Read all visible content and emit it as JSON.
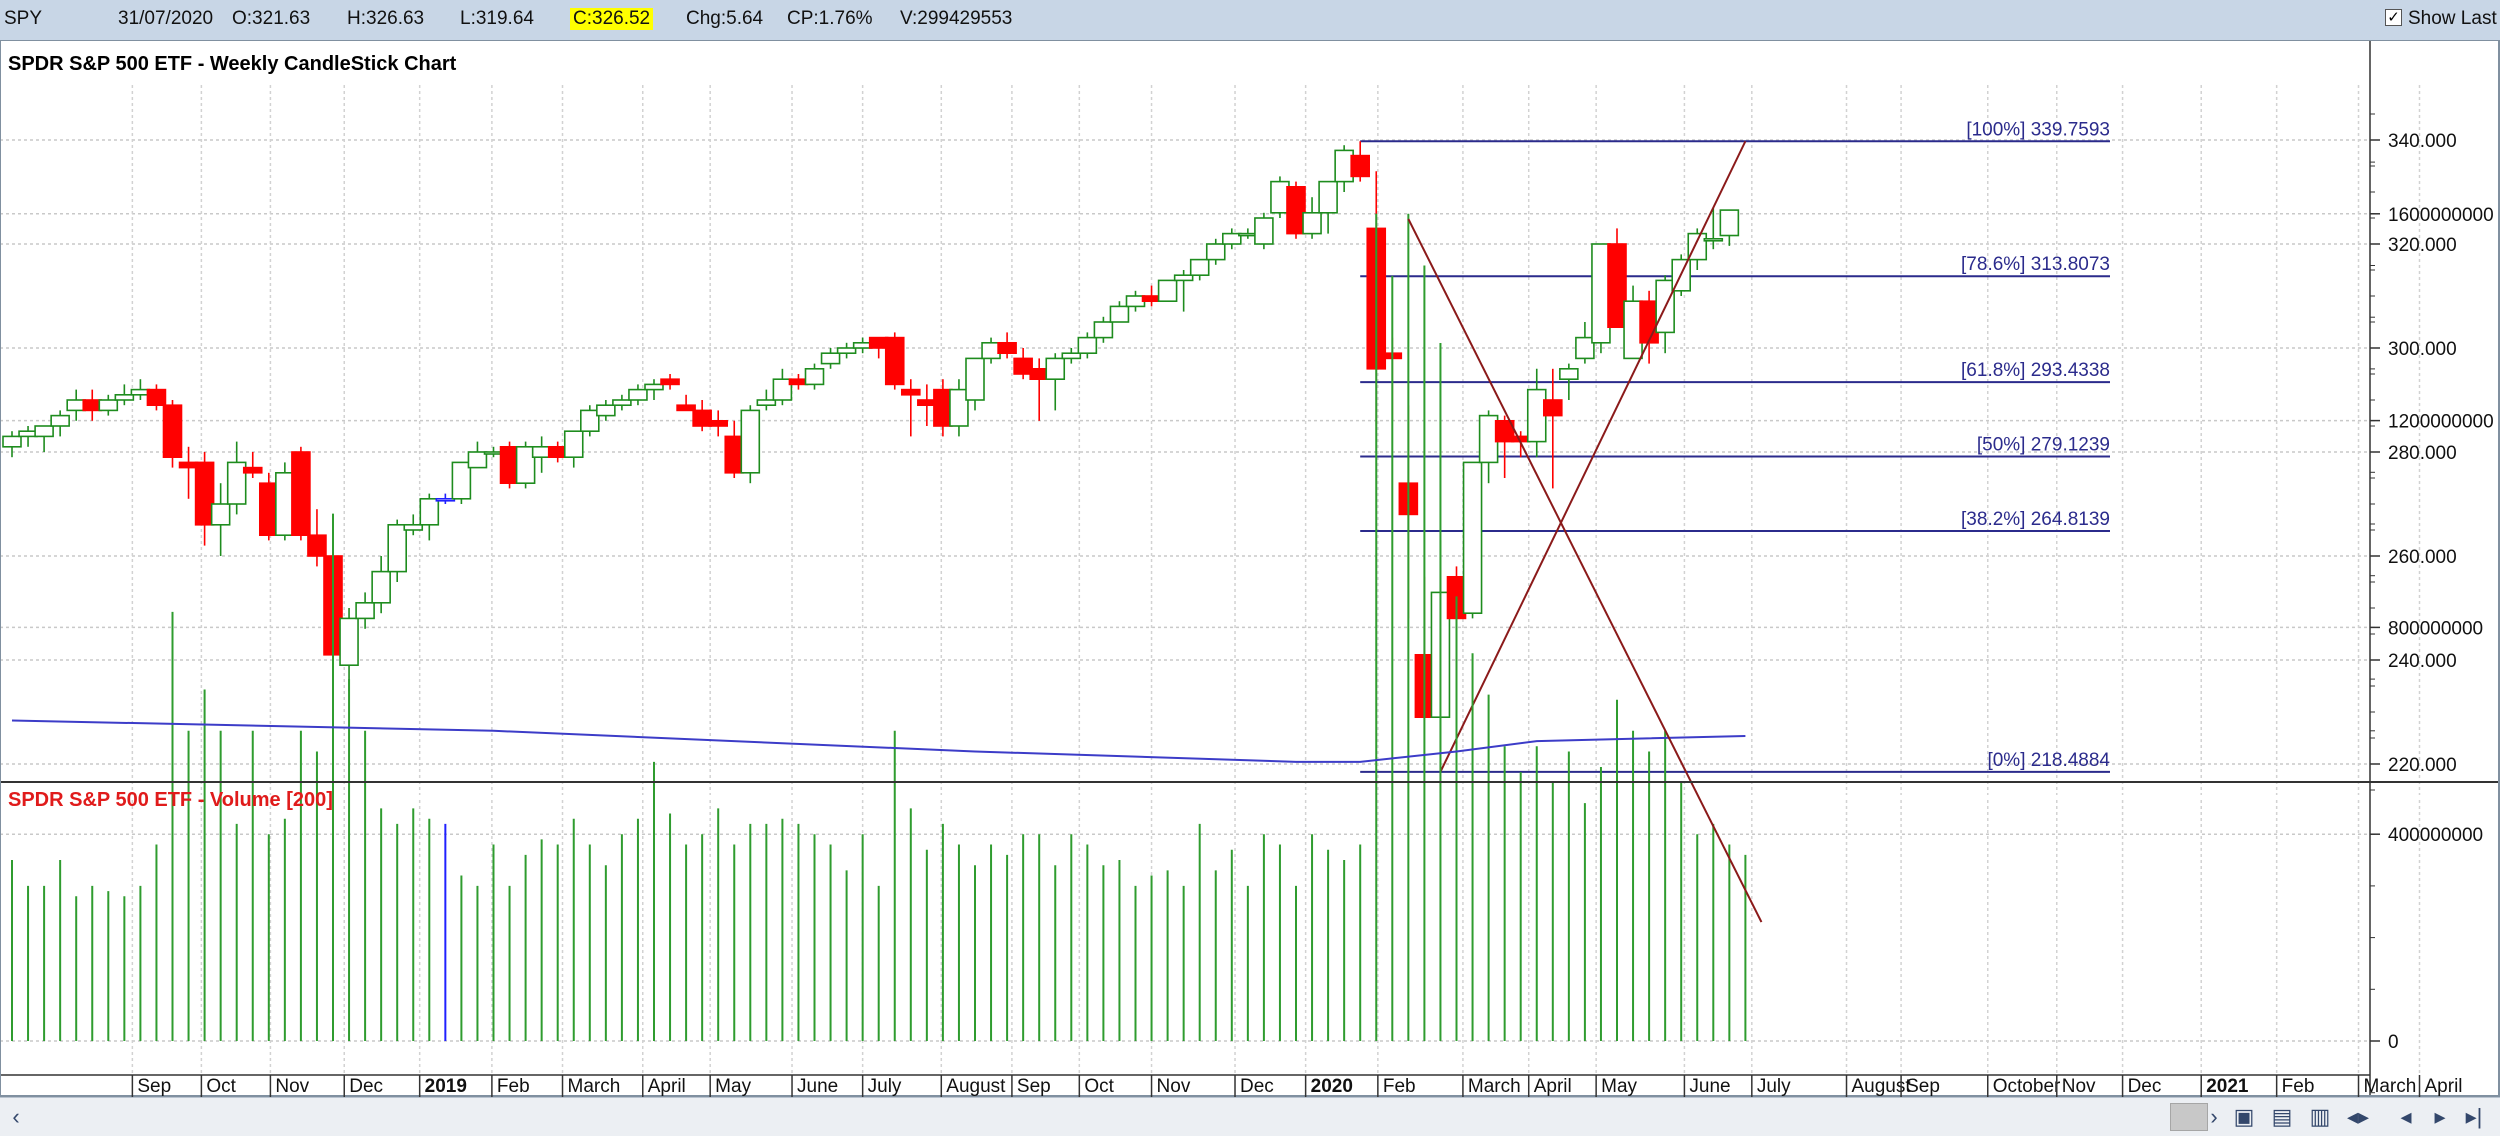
{
  "header": {
    "symbol": "SPY",
    "date": "31/07/2020",
    "open": "O:321.63",
    "high": "H:326.63",
    "low": "L:319.64",
    "close": "C:326.52",
    "change": "Chg:5.64",
    "change_pct": "CP:1.76%",
    "volume": "V:299429553",
    "show_last_label": "Show Last",
    "show_last_checked": "✓"
  },
  "colors": {
    "up": "#1e8c1e",
    "down": "#ff0000",
    "fib": "#2b2b8c",
    "trend": "#8b1a1a",
    "volume_bar": "#2f9c2f",
    "volume_ma": "#3c3cc8",
    "title_price": "#000000",
    "title_volume": "#e01b1b",
    "highlight": "#ffff00"
  },
  "chart_data": [
    {
      "type": "candlestick",
      "title": "SPDR S&P 500 ETF - Weekly CandleStick Chart",
      "ylim": [
        210,
        345
      ],
      "y_ticks": [
        "340.000",
        "320.000",
        "300.000",
        "280.000",
        "260.000",
        "240.000",
        "220.000"
      ],
      "y_tick_values": [
        340,
        320,
        300,
        280,
        260,
        240,
        220
      ],
      "grid": true,
      "candles": [
        {
          "o": 281,
          "h": 284,
          "l": 279,
          "c": 283
        },
        {
          "o": 283,
          "h": 285,
          "l": 281,
          "c": 284
        },
        {
          "o": 283,
          "h": 285,
          "l": 280,
          "c": 285
        },
        {
          "o": 285,
          "h": 288,
          "l": 283,
          "c": 287
        },
        {
          "o": 288,
          "h": 292,
          "l": 286,
          "c": 290
        },
        {
          "o": 290,
          "h": 292,
          "l": 286,
          "c": 288
        },
        {
          "o": 288,
          "h": 291,
          "l": 287,
          "c": 290
        },
        {
          "o": 290,
          "h": 293,
          "l": 289,
          "c": 291
        },
        {
          "o": 291,
          "h": 294,
          "l": 290,
          "c": 292
        },
        {
          "o": 292,
          "h": 293,
          "l": 288,
          "c": 289
        },
        {
          "o": 289,
          "h": 290,
          "l": 277,
          "c": 279
        },
        {
          "o": 278,
          "h": 281,
          "l": 271,
          "c": 277
        },
        {
          "o": 278,
          "h": 280,
          "l": 262,
          "c": 266
        },
        {
          "o": 266,
          "h": 274,
          "l": 260,
          "c": 270
        },
        {
          "o": 270,
          "h": 282,
          "l": 268,
          "c": 278
        },
        {
          "o": 277,
          "h": 280,
          "l": 275,
          "c": 276
        },
        {
          "o": 274,
          "h": 276,
          "l": 263,
          "c": 264
        },
        {
          "o": 264,
          "h": 278,
          "l": 263,
          "c": 276
        },
        {
          "o": 280,
          "h": 281,
          "l": 263,
          "c": 264
        },
        {
          "o": 264,
          "h": 269,
          "l": 258,
          "c": 260
        },
        {
          "o": 260,
          "h": 262,
          "l": 240,
          "c": 241
        },
        {
          "o": 239,
          "h": 250,
          "l": 234,
          "c": 248
        },
        {
          "o": 248,
          "h": 253,
          "l": 246,
          "c": 251
        },
        {
          "o": 251,
          "h": 260,
          "l": 249,
          "c": 257
        },
        {
          "o": 257,
          "h": 267,
          "l": 255,
          "c": 266
        },
        {
          "o": 265,
          "h": 268,
          "l": 264,
          "c": 266
        },
        {
          "o": 266,
          "h": 272,
          "l": 263,
          "c": 271
        },
        {
          "o": 271,
          "h": 272,
          "l": 270,
          "c": 271,
          "n": true
        },
        {
          "o": 271,
          "h": 278,
          "l": 270,
          "c": 278
        },
        {
          "o": 277,
          "h": 282,
          "l": 277,
          "c": 280
        },
        {
          "o": 280,
          "h": 281,
          "l": 279,
          "c": 280
        },
        {
          "o": 281,
          "h": 282,
          "l": 273,
          "c": 274
        },
        {
          "o": 274,
          "h": 282,
          "l": 273,
          "c": 281
        },
        {
          "o": 279,
          "h": 283,
          "l": 276,
          "c": 281
        },
        {
          "o": 281,
          "h": 282,
          "l": 278,
          "c": 279
        },
        {
          "o": 279,
          "h": 284,
          "l": 277,
          "c": 284
        },
        {
          "o": 284,
          "h": 289,
          "l": 283,
          "c": 288
        },
        {
          "o": 287,
          "h": 290,
          "l": 286,
          "c": 289
        },
        {
          "o": 289,
          "h": 291,
          "l": 288,
          "c": 290
        },
        {
          "o": 290,
          "h": 293,
          "l": 289,
          "c": 292
        },
        {
          "o": 292,
          "h": 294,
          "l": 290,
          "c": 293
        },
        {
          "o": 294,
          "h": 295,
          "l": 292,
          "c": 293
        },
        {
          "o": 289,
          "h": 291,
          "l": 288,
          "c": 288
        },
        {
          "o": 288,
          "h": 290,
          "l": 284,
          "c": 285
        },
        {
          "o": 286,
          "h": 288,
          "l": 283,
          "c": 285
        },
        {
          "o": 283,
          "h": 286,
          "l": 275,
          "c": 276
        },
        {
          "o": 276,
          "h": 289,
          "l": 274,
          "c": 288
        },
        {
          "o": 289,
          "h": 292,
          "l": 288,
          "c": 290
        },
        {
          "o": 290,
          "h": 296,
          "l": 289,
          "c": 294
        },
        {
          "o": 294,
          "h": 295,
          "l": 292,
          "c": 293
        },
        {
          "o": 293,
          "h": 297,
          "l": 292,
          "c": 296
        },
        {
          "o": 297,
          "h": 300,
          "l": 296,
          "c": 299
        },
        {
          "o": 299,
          "h": 301,
          "l": 298,
          "c": 300
        },
        {
          "o": 300,
          "h": 302,
          "l": 299,
          "c": 301
        },
        {
          "o": 302,
          "h": 302,
          "l": 298,
          "c": 300
        },
        {
          "o": 302,
          "h": 303,
          "l": 292,
          "c": 293
        },
        {
          "o": 292,
          "h": 294,
          "l": 283,
          "c": 291
        },
        {
          "o": 290,
          "h": 293,
          "l": 285,
          "c": 289
        },
        {
          "o": 292,
          "h": 294,
          "l": 283,
          "c": 285
        },
        {
          "o": 285,
          "h": 294,
          "l": 283,
          "c": 292
        },
        {
          "o": 290,
          "h": 298,
          "l": 288,
          "c": 298
        },
        {
          "o": 298,
          "h": 302,
          "l": 297,
          "c": 301
        },
        {
          "o": 301,
          "h": 303,
          "l": 298,
          "c": 299
        },
        {
          "o": 298,
          "h": 300,
          "l": 294,
          "c": 295
        },
        {
          "o": 296,
          "h": 298,
          "l": 286,
          "c": 294
        },
        {
          "o": 294,
          "h": 299,
          "l": 288,
          "c": 298
        },
        {
          "o": 298,
          "h": 300,
          "l": 297,
          "c": 299
        },
        {
          "o": 299,
          "h": 303,
          "l": 298,
          "c": 302
        },
        {
          "o": 302,
          "h": 306,
          "l": 301,
          "c": 305
        },
        {
          "o": 305,
          "h": 309,
          "l": 305,
          "c": 308
        },
        {
          "o": 308,
          "h": 311,
          "l": 307,
          "c": 310
        },
        {
          "o": 310,
          "h": 312,
          "l": 308,
          "c": 309
        },
        {
          "o": 309,
          "h": 313,
          "l": 309,
          "c": 313
        },
        {
          "o": 313,
          "h": 315,
          "l": 307,
          "c": 314
        },
        {
          "o": 314,
          "h": 317,
          "l": 313,
          "c": 317
        },
        {
          "o": 317,
          "h": 321,
          "l": 316,
          "c": 320
        },
        {
          "o": 320,
          "h": 323,
          "l": 319,
          "c": 322
        },
        {
          "o": 322,
          "h": 323,
          "l": 321,
          "c": 322
        },
        {
          "o": 320,
          "h": 326,
          "l": 319,
          "c": 325
        },
        {
          "o": 326,
          "h": 333,
          "l": 325,
          "c": 332
        },
        {
          "o": 331,
          "h": 332,
          "l": 321,
          "c": 322
        },
        {
          "o": 322,
          "h": 329,
          "l": 321,
          "c": 326
        },
        {
          "o": 326,
          "h": 332,
          "l": 322,
          "c": 332
        },
        {
          "o": 332,
          "h": 339,
          "l": 330,
          "c": 338
        },
        {
          "o": 337,
          "h": 339.76,
          "l": 332,
          "c": 333
        },
        {
          "o": 323,
          "h": 334,
          "l": 285,
          "c": 296
        },
        {
          "o": 299,
          "h": 302,
          "l": 286,
          "c": 298
        },
        {
          "o": 274,
          "h": 289,
          "l": 248,
          "c": 268
        },
        {
          "o": 241,
          "h": 256,
          "l": 229,
          "c": 229
        },
        {
          "o": 229,
          "h": 263,
          "l": 218.49,
          "c": 253
        },
        {
          "o": 256,
          "h": 258,
          "l": 243,
          "c": 248
        },
        {
          "o": 249,
          "h": 278,
          "l": 248,
          "c": 278
        },
        {
          "o": 278,
          "h": 288,
          "l": 274,
          "c": 287
        },
        {
          "o": 286,
          "h": 287,
          "l": 275,
          "c": 282
        },
        {
          "o": 283,
          "h": 284,
          "l": 279,
          "c": 282
        },
        {
          "o": 282,
          "h": 296,
          "l": 279,
          "c": 292
        },
        {
          "o": 290,
          "h": 296,
          "l": 273,
          "c": 287
        },
        {
          "o": 294,
          "h": 297,
          "l": 290,
          "c": 296
        },
        {
          "o": 298,
          "h": 305,
          "l": 297,
          "c": 302
        },
        {
          "o": 301,
          "h": 320,
          "l": 299,
          "c": 320
        },
        {
          "o": 320,
          "h": 323,
          "l": 304,
          "c": 304
        },
        {
          "o": 298,
          "h": 312,
          "l": 298,
          "c": 309
        },
        {
          "o": 309,
          "h": 311,
          "l": 297,
          "c": 301
        },
        {
          "o": 303,
          "h": 314,
          "l": 299,
          "c": 313
        },
        {
          "o": 311,
          "h": 318,
          "l": 310,
          "c": 317
        },
        {
          "o": 317,
          "h": 323,
          "l": 315,
          "c": 322
        },
        {
          "o": 321,
          "h": 327,
          "l": 319,
          "c": 321
        },
        {
          "o": 321.63,
          "h": 326.63,
          "l": 319.64,
          "c": 326.52
        }
      ],
      "fibonacci": [
        {
          "label": "[100%] 339.7593",
          "value": 339.7593
        },
        {
          "label": "[78.6%] 313.8073",
          "value": 313.8073
        },
        {
          "label": "[61.8%] 293.4338",
          "value": 293.4338
        },
        {
          "label": "[50%] 279.1239",
          "value": 279.1239
        },
        {
          "label": "[38.2%] 264.8139",
          "value": 264.8139
        },
        {
          "label": "[0%] 218.4884",
          "value": 218.4884
        }
      ],
      "trendline": {
        "start_week": 89,
        "start_value": 218.49,
        "end_week": 108,
        "end_value": 339.76
      }
    },
    {
      "type": "bar",
      "title": "SPDR S&P 500 ETF - Volume [200]",
      "ylim": [
        -250000000,
        1750000000
      ],
      "y_ticks": [
        "1600000000",
        "1200000000",
        "800000000",
        "400000000",
        "0"
      ],
      "y_tick_values": [
        1600000000,
        1200000000,
        800000000,
        400000000,
        0
      ],
      "volumes": [
        350,
        300,
        300,
        350,
        280,
        300,
        290,
        280,
        300,
        380,
        830,
        600,
        680,
        600,
        420,
        600,
        400,
        430,
        600,
        560,
        1020,
        700,
        600,
        450,
        420,
        450,
        430,
        420,
        320,
        300,
        380,
        300,
        360,
        390,
        380,
        430,
        380,
        340,
        400,
        430,
        540,
        440,
        380,
        400,
        450,
        380,
        420,
        420,
        430,
        420,
        400,
        380,
        330,
        400,
        300,
        600,
        450,
        370,
        420,
        380,
        340,
        380,
        360,
        400,
        400,
        340,
        400,
        380,
        340,
        350,
        300,
        320,
        330,
        300,
        420,
        330,
        370,
        300,
        400,
        380,
        300,
        400,
        370,
        350,
        380,
        1600,
        1480,
        1600,
        1500,
        1350,
        860,
        750,
        670,
        570,
        520,
        570,
        500,
        560,
        460,
        530,
        660,
        600,
        560,
        600,
        500,
        400,
        420,
        380,
        360
      ],
      "volume_ma": [
        {
          "w": 0,
          "v": 620
        },
        {
          "w": 30,
          "v": 600
        },
        {
          "w": 60,
          "v": 560
        },
        {
          "w": 80,
          "v": 540
        },
        {
          "w": 84,
          "v": 540
        },
        {
          "w": 90,
          "v": 560
        },
        {
          "w": 95,
          "v": 580
        },
        {
          "w": 108,
          "v": 590
        }
      ],
      "trendline": {
        "start_week": 87,
        "start_value": 1590000000,
        "end_week": 109,
        "end_value": 230000000
      },
      "grid": true
    }
  ],
  "x_axis": {
    "labels": [
      {
        "t": "Sep",
        "w": 7.5
      },
      {
        "t": "Oct",
        "w": 11.8
      },
      {
        "t": "Nov",
        "w": 16.1
      },
      {
        "t": "Dec",
        "w": 20.7
      },
      {
        "t": "2019",
        "w": 25.4,
        "bold": true
      },
      {
        "t": "Feb",
        "w": 29.9
      },
      {
        "t": "March",
        "w": 34.3
      },
      {
        "t": "April",
        "w": 39.3
      },
      {
        "t": "May",
        "w": 43.5
      },
      {
        "t": "June",
        "w": 48.6
      },
      {
        "t": "July",
        "w": 53.0
      },
      {
        "t": "August",
        "w": 57.9
      },
      {
        "t": "Sep",
        "w": 62.3
      },
      {
        "t": "Oct",
        "w": 66.5
      },
      {
        "t": "Nov",
        "w": 71.0
      },
      {
        "t": "Dec",
        "w": 76.2
      },
      {
        "t": "2020",
        "w": 80.6,
        "bold": true
      },
      {
        "t": "Feb",
        "w": 85.1
      },
      {
        "t": "March",
        "w": 90.4
      },
      {
        "t": "April",
        "w": 94.5
      },
      {
        "t": "May",
        "w": 98.7
      },
      {
        "t": "June",
        "w": 104.2
      },
      {
        "t": "July",
        "w": 108.4
      },
      {
        "t": "August",
        "w": 114.3
      },
      {
        "t": "Sep",
        "w": 117.7
      },
      {
        "t": "October",
        "w": 123.1
      },
      {
        "t": "Nov",
        "w": 127.4
      },
      {
        "t": "Dec",
        "w": 131.5
      },
      {
        "t": "2021",
        "w": 136.4,
        "bold": true
      },
      {
        "t": "Feb",
        "w": 141.1
      },
      {
        "t": "March",
        "w": 146.2
      },
      {
        "t": "April",
        "w": 150.0
      }
    ]
  }
}
